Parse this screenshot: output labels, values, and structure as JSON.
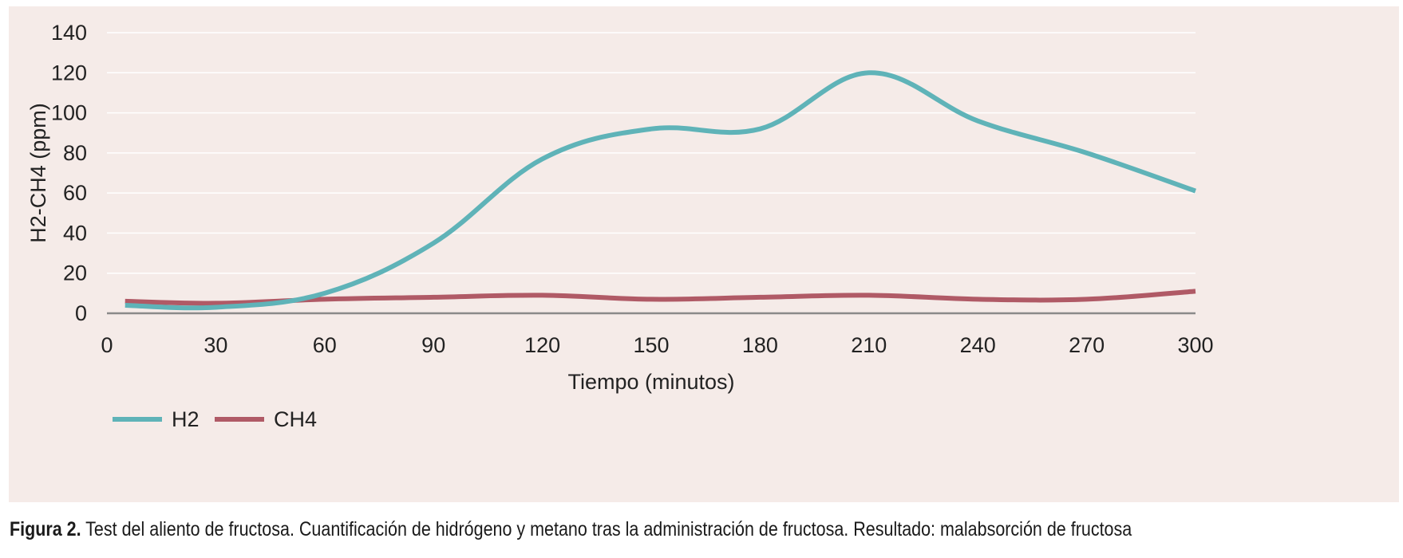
{
  "chart_data": {
    "type": "line",
    "xlabel": "Tiempo (minutos)",
    "ylabel": "H2-CH4 (ppm)",
    "xlim": [
      0,
      300
    ],
    "ylim": [
      0,
      140
    ],
    "x_ticks": [
      0,
      30,
      60,
      90,
      120,
      150,
      180,
      210,
      240,
      270,
      300
    ],
    "y_ticks": [
      0,
      20,
      40,
      60,
      80,
      100,
      120,
      140
    ],
    "grid": true,
    "legend_position": "bottom-left",
    "series": [
      {
        "name": "H2",
        "color": "#5fb3b8",
        "x": [
          5,
          30,
          60,
          90,
          120,
          150,
          180,
          210,
          240,
          270,
          300
        ],
        "y": [
          4,
          3,
          10,
          35,
          77,
          92,
          92,
          120,
          96,
          80,
          61
        ]
      },
      {
        "name": "CH4",
        "color": "#b05a66",
        "x": [
          5,
          30,
          60,
          90,
          120,
          150,
          180,
          210,
          240,
          270,
          300
        ],
        "y": [
          6,
          5,
          7,
          8,
          9,
          7,
          8,
          9,
          7,
          7,
          11
        ]
      }
    ]
  },
  "caption": {
    "label": "Figura 2.",
    "text": " Test del aliento de fructosa. Cuantificación de hidrógeno y metano tras la administración de fructosa. Resultado: malabsorción de fructosa"
  }
}
